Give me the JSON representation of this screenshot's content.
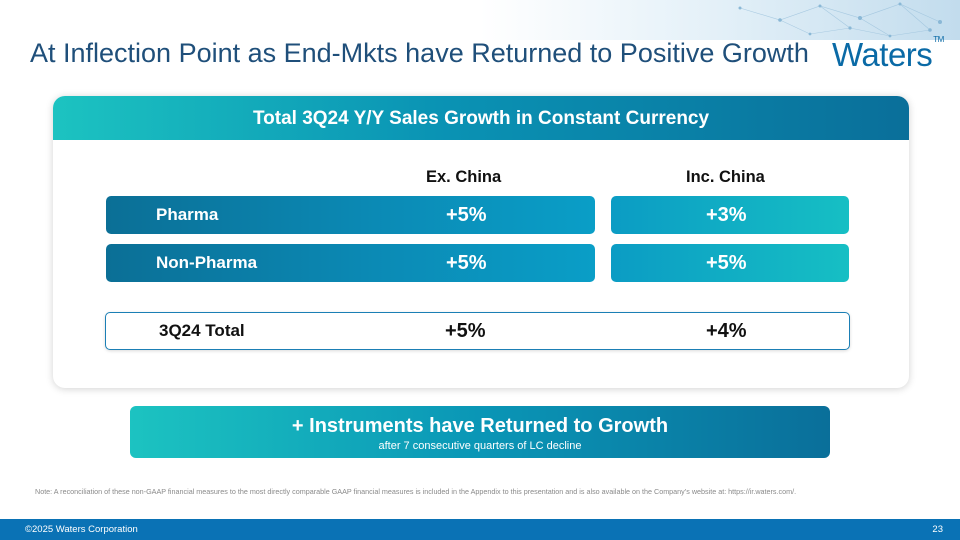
{
  "header": {
    "title": "At Inflection Point as End-Mkts have Returned to Positive Growth",
    "logo_text": "Waters",
    "logo_tm": "TM"
  },
  "card": {
    "title": "Total 3Q24 Y/Y Sales Growth in Constant Currency",
    "columns": [
      "Ex. China",
      "Inc. China"
    ],
    "rows": [
      {
        "label": "Pharma",
        "ex_china": "+5%",
        "inc_china": "+3%"
      },
      {
        "label": "Non-Pharma",
        "ex_china": "+5%",
        "inc_china": "+5%"
      }
    ],
    "total": {
      "label": "3Q24 Total",
      "ex_china": "+5%",
      "inc_china": "+4%"
    }
  },
  "callout": {
    "title": "+ Instruments have Returned to Growth",
    "subtitle": "after 7 consecutive quarters of LC decline"
  },
  "note": "Note: A reconciliation of these non-GAAP financial measures to the most directly comparable GAAP financial measures is included in the Appendix to this presentation and is also available on the Company’s website at: https://ir.waters.com/.",
  "footer": {
    "copyright": "©2025 Waters Corporation",
    "page_number": "23"
  },
  "colors": {
    "brand_blue": "#0a72b5",
    "teal": "#1cc3c1",
    "title_navy": "#1f4f7a"
  }
}
